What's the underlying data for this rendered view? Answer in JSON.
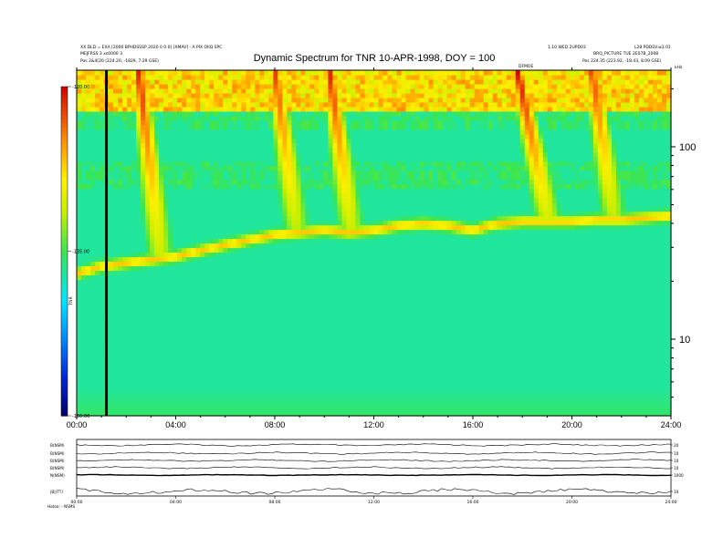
{
  "header": {
    "title": "Dynamic Spectrum for TNR 10-APR-1998, DOY = 100",
    "left_line1": "XX DLD = EXA [2000 BPHDSSSP 2020 0 0 0] [XMAV] - A PIX OIIQ SPC",
    "left_line2": "MEJFRSS 3 xs0000 3",
    "left_line3": "Pos 2&4[20 (224.20, -1829, 7.29 GSE)",
    "right_line1": "1.10 WED 2UPD03",
    "right_line1b": "L28 PDDSV.w3.01",
    "right_line2": "BRQ_PICTURE TUE 2E07B_2008",
    "right_line3": "Pos 224.35 (223.92, -18.43, 8.09 GSE)",
    "marker": "DFMOE",
    "khz": "kHz"
  },
  "colorbar": {
    "ticks": [
      "-120.00",
      "-135.00",
      "-150.00"
    ],
    "label": "TNR",
    "min": -150,
    "max": -120
  },
  "colors": {
    "background": "#00e6ff",
    "strong": "#d40000",
    "weak": "#000066"
  },
  "chart_data": [
    {
      "type": "heatmap",
      "title": "Dynamic Spectrum for TNR 10-APR-1998, DOY = 100",
      "xlabel": "",
      "ylabel": "",
      "x_ticks": [
        "00:00",
        "04:00",
        "08:00",
        "12:00",
        "16:00",
        "20:00",
        "24:00"
      ],
      "xlim": [
        0,
        24
      ],
      "y_scale": "log",
      "y_ticks": [
        "100",
        "10"
      ],
      "ylim": [
        4,
        250
      ],
      "value_range": [
        -150,
        -120
      ],
      "plasma_line_khz": [
        [
          0,
          22
        ],
        [
          1,
          24
        ],
        [
          2,
          25
        ],
        [
          3,
          26
        ],
        [
          4,
          27
        ],
        [
          5,
          29
        ],
        [
          6,
          31
        ],
        [
          7,
          33
        ],
        [
          8,
          35
        ],
        [
          9,
          36
        ],
        [
          10,
          37
        ],
        [
          11,
          36
        ],
        [
          12,
          37
        ],
        [
          13,
          39
        ],
        [
          14,
          40
        ],
        [
          15,
          39
        ],
        [
          16,
          37
        ],
        [
          17,
          40
        ],
        [
          18,
          41
        ],
        [
          19,
          41
        ],
        [
          20,
          41
        ],
        [
          21,
          42
        ],
        [
          22,
          42
        ],
        [
          23,
          43
        ],
        [
          24,
          44
        ]
      ],
      "radio_bursts": [
        {
          "start_hour": 2.5,
          "end_hour": 3.5,
          "intensity": -121
        },
        {
          "start_hour": 8.0,
          "end_hour": 9.0,
          "intensity": -122
        },
        {
          "start_hour": 10.2,
          "end_hour": 11.2,
          "intensity": -121
        },
        {
          "start_hour": 17.8,
          "end_hour": 19.2,
          "intensity": -120
        },
        {
          "start_hour": 20.8,
          "end_hour": 21.8,
          "intensity": -122
        }
      ],
      "data_gap_hour": 1.2
    },
    {
      "type": "line",
      "series": [
        {
          "name": "B(NSM)",
          "right_tick": "20"
        },
        {
          "name": "B(NSM)",
          "right_tick": "10"
        },
        {
          "name": "B(NSM)",
          "right_tick": "10"
        },
        {
          "name": "B(NSM)",
          "right_tick": "10"
        },
        {
          "name": "N(NSM)",
          "right_tick": "1000"
        },
        {
          "name": "|B|(TT)",
          "right_tick": "10"
        }
      ],
      "x_ticks": [
        "00:00",
        "04:00",
        "08:00",
        "12:00",
        "16:00",
        "20:00",
        "24:00"
      ],
      "xlim": [
        0,
        24
      ],
      "footer": "Hatoa: - NSMS"
    }
  ]
}
